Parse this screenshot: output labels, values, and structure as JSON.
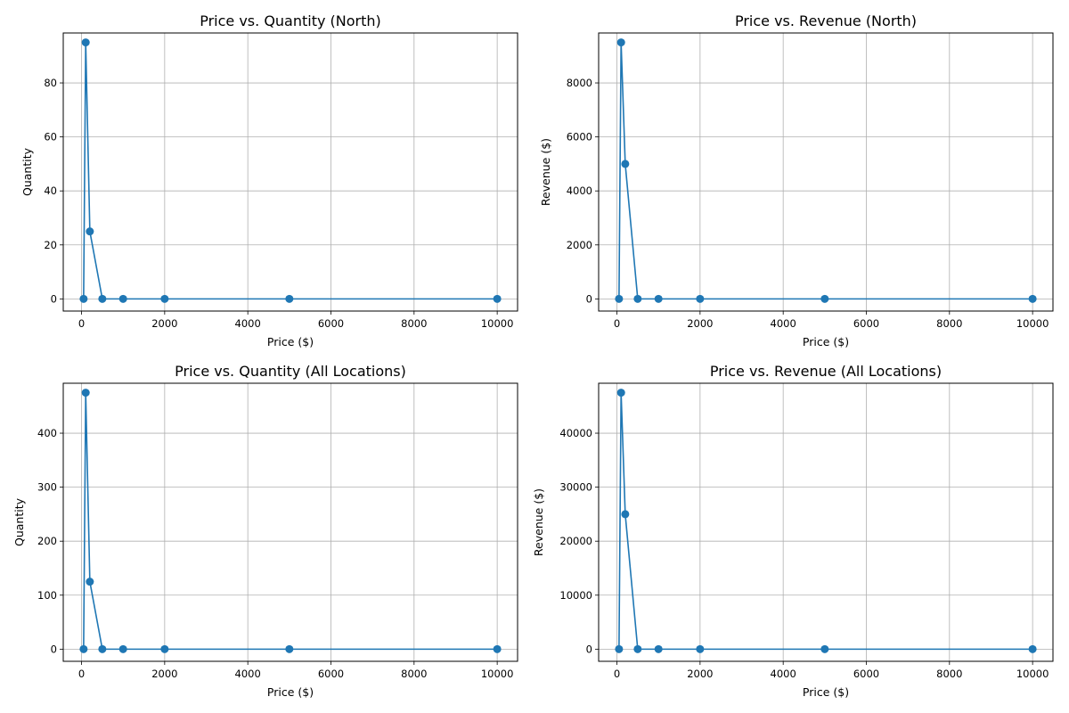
{
  "chart_data": [
    {
      "type": "line",
      "title": "Price vs. Quantity (North)",
      "xlabel": "Price ($)",
      "ylabel": "Quantity",
      "xlim": [
        -440,
        10490
      ],
      "ylim": [
        -4.5,
        98.5
      ],
      "xticks": [
        0,
        2000,
        4000,
        6000,
        8000,
        10000
      ],
      "yticks": [
        0,
        20,
        40,
        60,
        80
      ],
      "grid": true,
      "color": "#1f77b4",
      "markers": true,
      "x": [
        50,
        100,
        200,
        500,
        1000,
        2000,
        5000,
        10000
      ],
      "y": [
        0,
        95,
        25,
        0,
        0,
        0,
        0,
        0
      ]
    },
    {
      "type": "line",
      "title": "Price vs. Revenue (North)",
      "xlabel": "Price ($)",
      "ylabel": "Revenue ($)",
      "xlim": [
        -440,
        10490
      ],
      "ylim": [
        -450,
        9850
      ],
      "xticks": [
        0,
        2000,
        4000,
        6000,
        8000,
        10000
      ],
      "yticks": [
        0,
        2000,
        4000,
        6000,
        8000
      ],
      "grid": true,
      "color": "#1f77b4",
      "markers": true,
      "x": [
        50,
        100,
        200,
        500,
        1000,
        2000,
        5000,
        10000
      ],
      "y": [
        0,
        9500,
        5000,
        0,
        0,
        0,
        0,
        0
      ]
    },
    {
      "type": "line",
      "title": "Price vs. Quantity (All Locations)",
      "xlabel": "Price ($)",
      "ylabel": "Quantity",
      "xlim": [
        -440,
        10490
      ],
      "ylim": [
        -22.5,
        492.5
      ],
      "xticks": [
        0,
        2000,
        4000,
        6000,
        8000,
        10000
      ],
      "yticks": [
        0,
        100,
        200,
        300,
        400
      ],
      "grid": true,
      "color": "#1f77b4",
      "markers": true,
      "x": [
        50,
        100,
        200,
        500,
        1000,
        2000,
        5000,
        10000
      ],
      "y": [
        0,
        475,
        125,
        0,
        0,
        0,
        0,
        0
      ]
    },
    {
      "type": "line",
      "title": "Price vs. Revenue (All Locations)",
      "xlabel": "Price ($)",
      "ylabel": "Revenue ($)",
      "xlim": [
        -440,
        10490
      ],
      "ylim": [
        -2250,
        49250
      ],
      "xticks": [
        0,
        2000,
        4000,
        6000,
        8000,
        10000
      ],
      "yticks": [
        0,
        10000,
        20000,
        30000,
        40000
      ],
      "grid": true,
      "color": "#1f77b4",
      "markers": true,
      "x": [
        50,
        100,
        200,
        500,
        1000,
        2000,
        5000,
        10000
      ],
      "y": [
        0,
        47500,
        25000,
        0,
        0,
        0,
        0,
        0
      ]
    }
  ]
}
